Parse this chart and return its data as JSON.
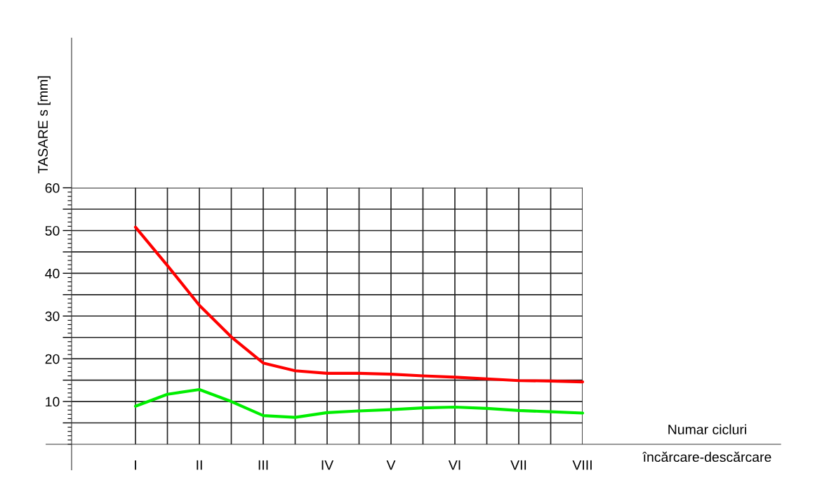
{
  "chart_data": {
    "type": "line",
    "xlabel": "Numar cicluri\nîncărcare-descărcare",
    "ylabel": "TASARE s [mm]",
    "categories": [
      "I",
      null,
      "II",
      null,
      "III",
      null,
      "IV",
      null,
      "V",
      null,
      "VI",
      null,
      "VII",
      null,
      "VIII"
    ],
    "series": [
      {
        "color": "#ff0000",
        "values": [
          50.8,
          41.8,
          32.5,
          25.1,
          19.0,
          17.2,
          16.6,
          16.6,
          16.4,
          16.0,
          15.7,
          15.3,
          14.9,
          14.8,
          14.6
        ]
      },
      {
        "color": "#00ee00",
        "values": [
          8.9,
          11.7,
          12.8,
          10.0,
          6.7,
          6.3,
          7.4,
          7.8,
          8.1,
          8.5,
          8.7,
          8.4,
          7.9,
          7.6,
          7.3
        ]
      }
    ],
    "ylim": [
      -6,
      95
    ],
    "yticks": [
      {
        "value": 5,
        "label": null
      },
      10,
      {
        "value": 15,
        "label": null
      },
      20,
      {
        "value": 25,
        "label": null
      },
      30,
      {
        "value": 35,
        "label": null
      },
      40,
      {
        "value": 45,
        "label": null
      },
      50,
      {
        "value": 55,
        "label": null
      },
      60
    ],
    "grid": true,
    "marker": "none",
    "line_style": "solid"
  }
}
